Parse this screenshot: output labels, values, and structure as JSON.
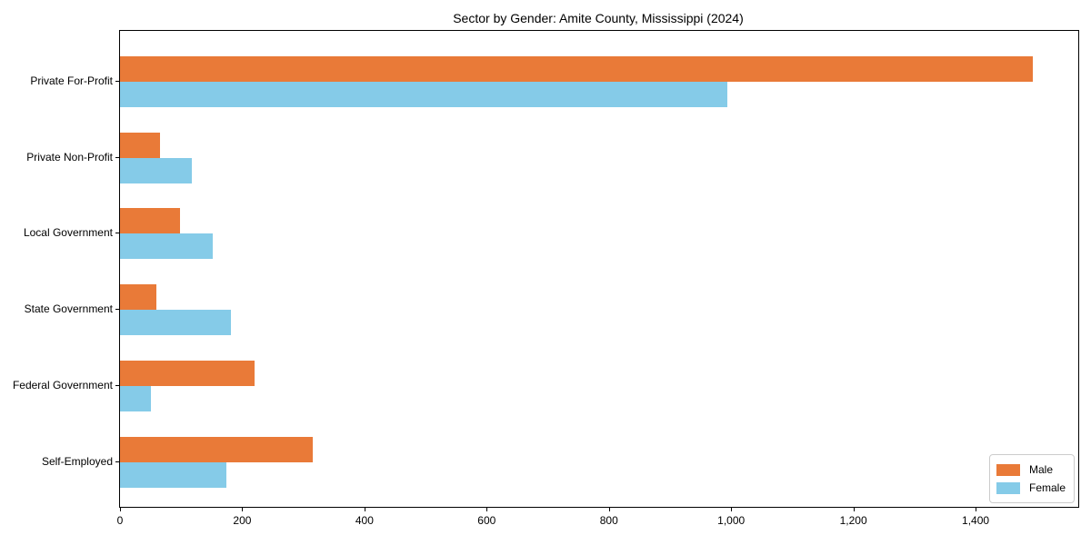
{
  "chart_data": {
    "type": "bar",
    "orientation": "horizontal",
    "title": "Sector by Gender: Amite County, Mississippi (2024)",
    "categories": [
      "Private For-Profit",
      "Private Non-Profit",
      "Local Government",
      "State Government",
      "Federal Government",
      "Self-Employed"
    ],
    "series": [
      {
        "name": "Male",
        "color": "#e97a38",
        "values": [
          1494,
          65,
          98,
          60,
          220,
          315
        ]
      },
      {
        "name": "Female",
        "color": "#85cbe8",
        "values": [
          994,
          118,
          152,
          182,
          51,
          174
        ]
      }
    ],
    "xlim": [
      0,
      1568
    ],
    "x_ticks": [
      0,
      200,
      400,
      600,
      800,
      1000,
      1200,
      1400
    ],
    "x_tick_labels": [
      "0",
      "200",
      "400",
      "600",
      "800",
      "1,000",
      "1,200",
      "1,400"
    ],
    "legend_position": "lower right",
    "grid": false
  },
  "colors": {
    "background": "#ffffff",
    "axis": "#000000",
    "text": "#000000",
    "legend_border": "#cccccc",
    "male": "#e97a38",
    "female": "#85cbe8"
  }
}
